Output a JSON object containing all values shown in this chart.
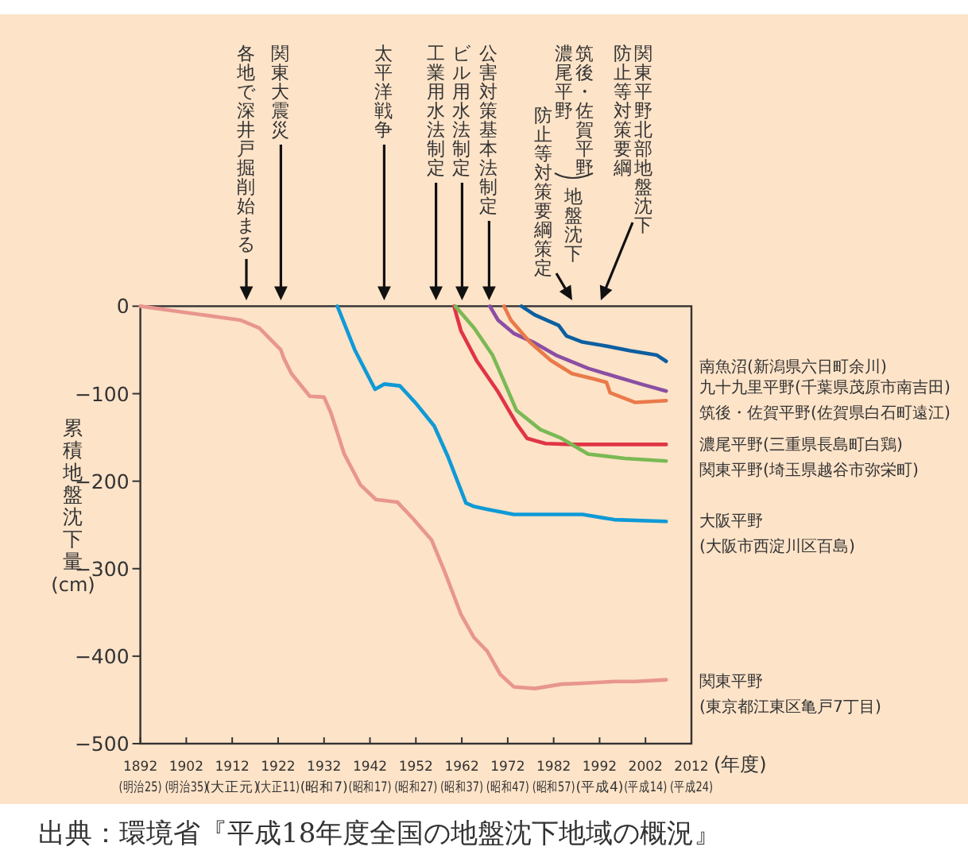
{
  "chart_data": {
    "type": "line",
    "ylabel": "累積地盤沈下量\n(cm)",
    "xlabel": "(年度)",
    "xlim": [
      1892,
      2012
    ],
    "ylim": [
      -500,
      0
    ],
    "xticks": [
      1892,
      1902,
      1912,
      1922,
      1932,
      1942,
      1952,
      1962,
      1972,
      1982,
      1992,
      2002,
      2012
    ],
    "yticks": [
      0,
      -100,
      -200,
      -300,
      -400,
      -500
    ],
    "grid": false,
    "legend": false,
    "series": [
      {
        "name": "南魚沼(新潟県六日町余川)",
        "color": "#0c5fa0",
        "x": [
          1975,
          1977.9,
          1983.1,
          1984.8,
          1988.3,
          1992.9,
          1998.7,
          2004.5,
          2006.5
        ],
        "values": [
          0,
          -10,
          -22,
          -34,
          -41,
          -45,
          -51,
          -56,
          -63
        ]
      },
      {
        "name": "九十九里平野(千葉県茂原市南吉田)",
        "color": "#8a4fa3",
        "x": [
          1968.1,
          1969.9,
          1973.3,
          1977.9,
          1982.5,
          1989.5,
          1995.2,
          2001,
          2006.5
        ],
        "values": [
          0,
          -16,
          -31,
          -42,
          -56,
          -71,
          -80,
          -89,
          -97
        ]
      },
      {
        "name": "筑後・佐賀平野(佐賀県白石町遠江)",
        "color": "#e97a4a",
        "x": [
          1971.2,
          1972.7,
          1976.8,
          1981.4,
          1986,
          1990.6,
          1993.5,
          1994.3,
          1999.8,
          2006.5
        ],
        "values": [
          0,
          -16,
          -41,
          -62,
          -77,
          -83,
          -87,
          -99,
          -110,
          -108
        ]
      },
      {
        "name": "濃尾平野(三重県長島町白鶏)",
        "color": "#e03545",
        "x": [
          1960.3,
          1961.8,
          1965.2,
          1969.9,
          1973.9,
          1976.2,
          1980.2,
          1986,
          1992.9,
          2006.5
        ],
        "values": [
          0,
          -28,
          -62,
          -98,
          -134,
          -151,
          -157,
          -158,
          -158,
          -158
        ]
      },
      {
        "name": "関東平野(埼玉県越谷市弥栄町)",
        "color": "#7ab954",
        "x": [
          1960.6,
          1964.7,
          1968.7,
          1971.2,
          1973.9,
          1979.1,
          1983.7,
          1989.5,
          1997.5,
          2006.5
        ],
        "values": [
          0,
          -25,
          -56,
          -86,
          -119,
          -141,
          -151,
          -169,
          -174,
          -177
        ]
      },
      {
        "name": "大阪平野\n(大阪市西淀川区百島)",
        "color": "#0f9ad6",
        "x": [
          1934.9,
          1938.7,
          1943.1,
          1945.1,
          1948.5,
          1952,
          1956,
          1958.9,
          1962.9,
          1964.7,
          1967.5,
          1973.3,
          1981.4,
          1988.3,
          1995.2,
          2006.5
        ],
        "values": [
          0,
          -50,
          -95,
          -89,
          -91,
          -111,
          -137,
          -171,
          -225,
          -229,
          -232,
          -238,
          -238,
          -238,
          -244,
          -246
        ]
      },
      {
        "name": "関東平野\n(東京都江東区亀戸7丁目)",
        "color": "#e8968f",
        "x": [
          1892,
          1913.9,
          1917.9,
          1922.6,
          1923.2,
          1924.9,
          1928.9,
          1932,
          1933.5,
          1936.4,
          1939.9,
          1943.3,
          1948,
          1951.4,
          1955.4,
          1958.3,
          1961.8,
          1964.7,
          1967.5,
          1970.4,
          1973.3,
          1977.9,
          1983.7,
          1988.3,
          1995.2,
          1999.8,
          2006.5
        ],
        "values": [
          0,
          -16,
          -25,
          -50,
          -59,
          -77,
          -103,
          -104,
          -122,
          -169,
          -204,
          -221,
          -224,
          -243,
          -267,
          -304,
          -352,
          -379,
          -394,
          -421,
          -435,
          -437,
          -432,
          -431,
          -429,
          -429,
          -427
        ]
      }
    ],
    "annotations": [
      "各地で深井戸掘削始まる",
      "関東大震災",
      "太平洋戦争",
      "工業用水法制定",
      "ビル用水法制定",
      "公害対策基本法制定",
      "筑後・佐賀平野",
      "濃尾平野",
      "地盤沈下",
      "防止等対策要綱策定",
      "関東平野北部地盤沈下",
      "防止等対策要綱",
      "(明治25)",
      "(明治35)",
      "(大正元)",
      "(大正11)",
      "(昭和7)",
      "(昭和17)",
      "(昭和27)",
      "(昭和37)",
      "(昭和47)",
      "(昭和57)",
      "(平成4)",
      "(平成14)",
      "(平成24)",
      "出典：環境省『平成18年度全国の地盤沈下地域の概況』"
    ]
  }
}
